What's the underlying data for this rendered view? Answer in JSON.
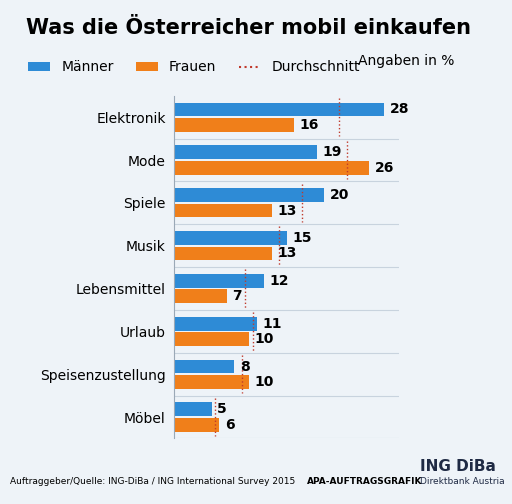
{
  "chart_data": {
    "type": "bar",
    "orientation": "horizontal",
    "title": "Was die Österreicher mobil einkaufen",
    "categories": [
      "Elektronik",
      "Mode",
      "Spiele",
      "Musik",
      "Lebensmittel",
      "Urlaub",
      "Speisenzustellung",
      "Möbel"
    ],
    "series": [
      {
        "name": "Männer",
        "color": "#2e8bd6",
        "values": [
          28,
          19,
          20,
          15,
          12,
          11,
          8,
          5
        ]
      },
      {
        "name": "Frauen",
        "color": "#f07f1a",
        "values": [
          16,
          26,
          13,
          13,
          7,
          10,
          10,
          6
        ]
      }
    ],
    "average": {
      "name": "Durchschnitt",
      "color": "#c0392b",
      "line_style": "dotted",
      "values": [
        22,
        23,
        17,
        14,
        9.5,
        10.5,
        9,
        5.5
      ]
    },
    "unit_note": "Angaben in %",
    "source": "Auftraggeber/Quelle: ING-DiBa / ING International Survey 2015",
    "credits": [
      "APA-AUFTRAGSGRAFIK",
      "ING DiBa",
      "Direktbank Austria"
    ],
    "xlim": [
      0,
      30
    ],
    "data_labels": true,
    "tick_labels": "y",
    "legend": "upper left",
    "grid": false
  }
}
